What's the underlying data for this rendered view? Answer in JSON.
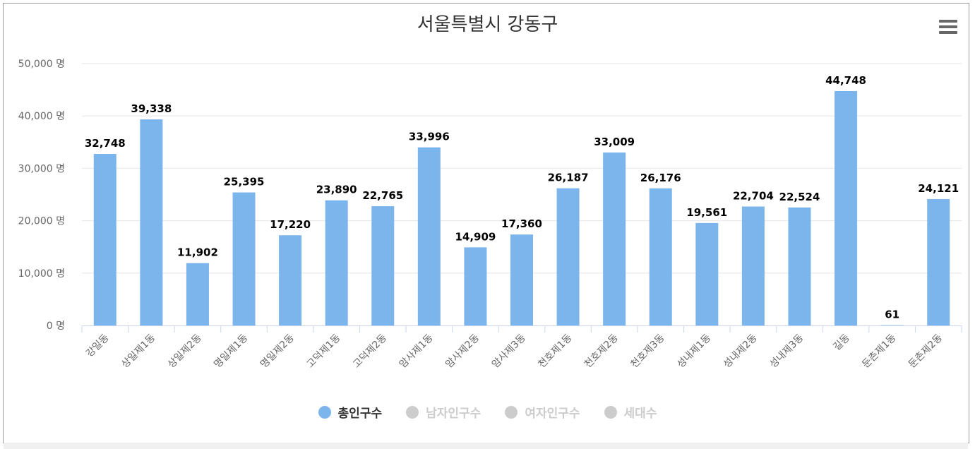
{
  "chart_data": {
    "type": "bar",
    "title": "서울특별시 강동구",
    "categories": [
      "강일동",
      "상일제1동",
      "상일제2동",
      "명일제1동",
      "명일제2동",
      "고덕제1동",
      "고덕제2동",
      "암사제1동",
      "암사제2동",
      "암사제3동",
      "천호제1동",
      "천호제2동",
      "천호제3동",
      "성내제1동",
      "성내제2동",
      "성내제3동",
      "길동",
      "둔촌제1동",
      "둔촌제2동"
    ],
    "series": [
      {
        "name": "총인구수",
        "values": [
          32748,
          39338,
          11902,
          25395,
          17220,
          23890,
          22765,
          33996,
          14909,
          17360,
          26187,
          33009,
          26176,
          19561,
          22704,
          22524,
          44748,
          61,
          24121
        ],
        "visible": true
      },
      {
        "name": "남자인구수",
        "visible": false
      },
      {
        "name": "여자인구수",
        "visible": false
      },
      {
        "name": "세대수",
        "visible": false
      }
    ],
    "value_labels": [
      "32,748",
      "39,338",
      "11,902",
      "25,395",
      "17,220",
      "23,890",
      "22,765",
      "33,996",
      "14,909",
      "17,360",
      "26,187",
      "33,009",
      "26,176",
      "19,561",
      "22,704",
      "22,524",
      "44,748",
      "61",
      "24,121"
    ],
    "y_ticks": [
      0,
      10000,
      20000,
      30000,
      40000,
      50000
    ],
    "y_tick_labels": [
      "0 명",
      "10,000 명",
      "20,000 명",
      "30,000 명",
      "40,000 명",
      "50,000 명"
    ],
    "ylim": [
      0,
      50000
    ],
    "xlabel": "",
    "ylabel": "",
    "grid": true,
    "legend_position": "bottom"
  },
  "colors": {
    "bar": "#7cb5ec",
    "legend_active_text": "#333333",
    "legend_inactive": "#cccccc",
    "grid": "#e6e6e6",
    "axis_label": "#666666",
    "data_label": "#000000"
  },
  "menu": {
    "icon": "hamburger-menu-icon"
  }
}
